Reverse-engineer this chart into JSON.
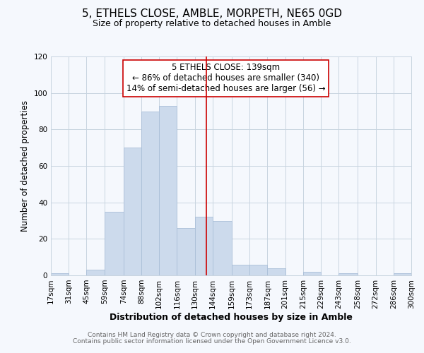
{
  "title": "5, ETHELS CLOSE, AMBLE, MORPETH, NE65 0GD",
  "subtitle": "Size of property relative to detached houses in Amble",
  "xlabel": "Distribution of detached houses by size in Amble",
  "ylabel": "Number of detached properties",
  "bar_color": "#ccdaec",
  "bar_edge_color": "#aabfd8",
  "background_color": "#f5f8fd",
  "grid_color": "#c8d4e0",
  "vline_x": 139,
  "vline_color": "#cc0000",
  "bin_edges": [
    17,
    31,
    45,
    59,
    74,
    88,
    102,
    116,
    130,
    144,
    159,
    173,
    187,
    201,
    215,
    229,
    243,
    258,
    272,
    286,
    300
  ],
  "bin_counts": [
    1,
    0,
    3,
    35,
    70,
    90,
    93,
    26,
    32,
    30,
    6,
    6,
    4,
    0,
    2,
    0,
    1,
    0,
    0,
    1
  ],
  "tick_labels": [
    "17sqm",
    "31sqm",
    "45sqm",
    "59sqm",
    "74sqm",
    "88sqm",
    "102sqm",
    "116sqm",
    "130sqm",
    "144sqm",
    "159sqm",
    "173sqm",
    "187sqm",
    "201sqm",
    "215sqm",
    "229sqm",
    "243sqm",
    "258sqm",
    "272sqm",
    "286sqm",
    "300sqm"
  ],
  "annotation_title": "5 ETHELS CLOSE: 139sqm",
  "annotation_line1": "← 86% of detached houses are smaller (340)",
  "annotation_line2": "14% of semi-detached houses are larger (56) →",
  "footer1": "Contains HM Land Registry data © Crown copyright and database right 2024.",
  "footer2": "Contains public sector information licensed under the Open Government Licence v3.0.",
  "ylim": [
    0,
    120
  ],
  "yticks": [
    0,
    20,
    40,
    60,
    80,
    100,
    120
  ],
  "title_fontsize": 11,
  "subtitle_fontsize": 9,
  "xlabel_fontsize": 9,
  "ylabel_fontsize": 8.5,
  "tick_fontsize": 7.5,
  "annotation_fontsize": 8.5,
  "footer_fontsize": 6.5
}
